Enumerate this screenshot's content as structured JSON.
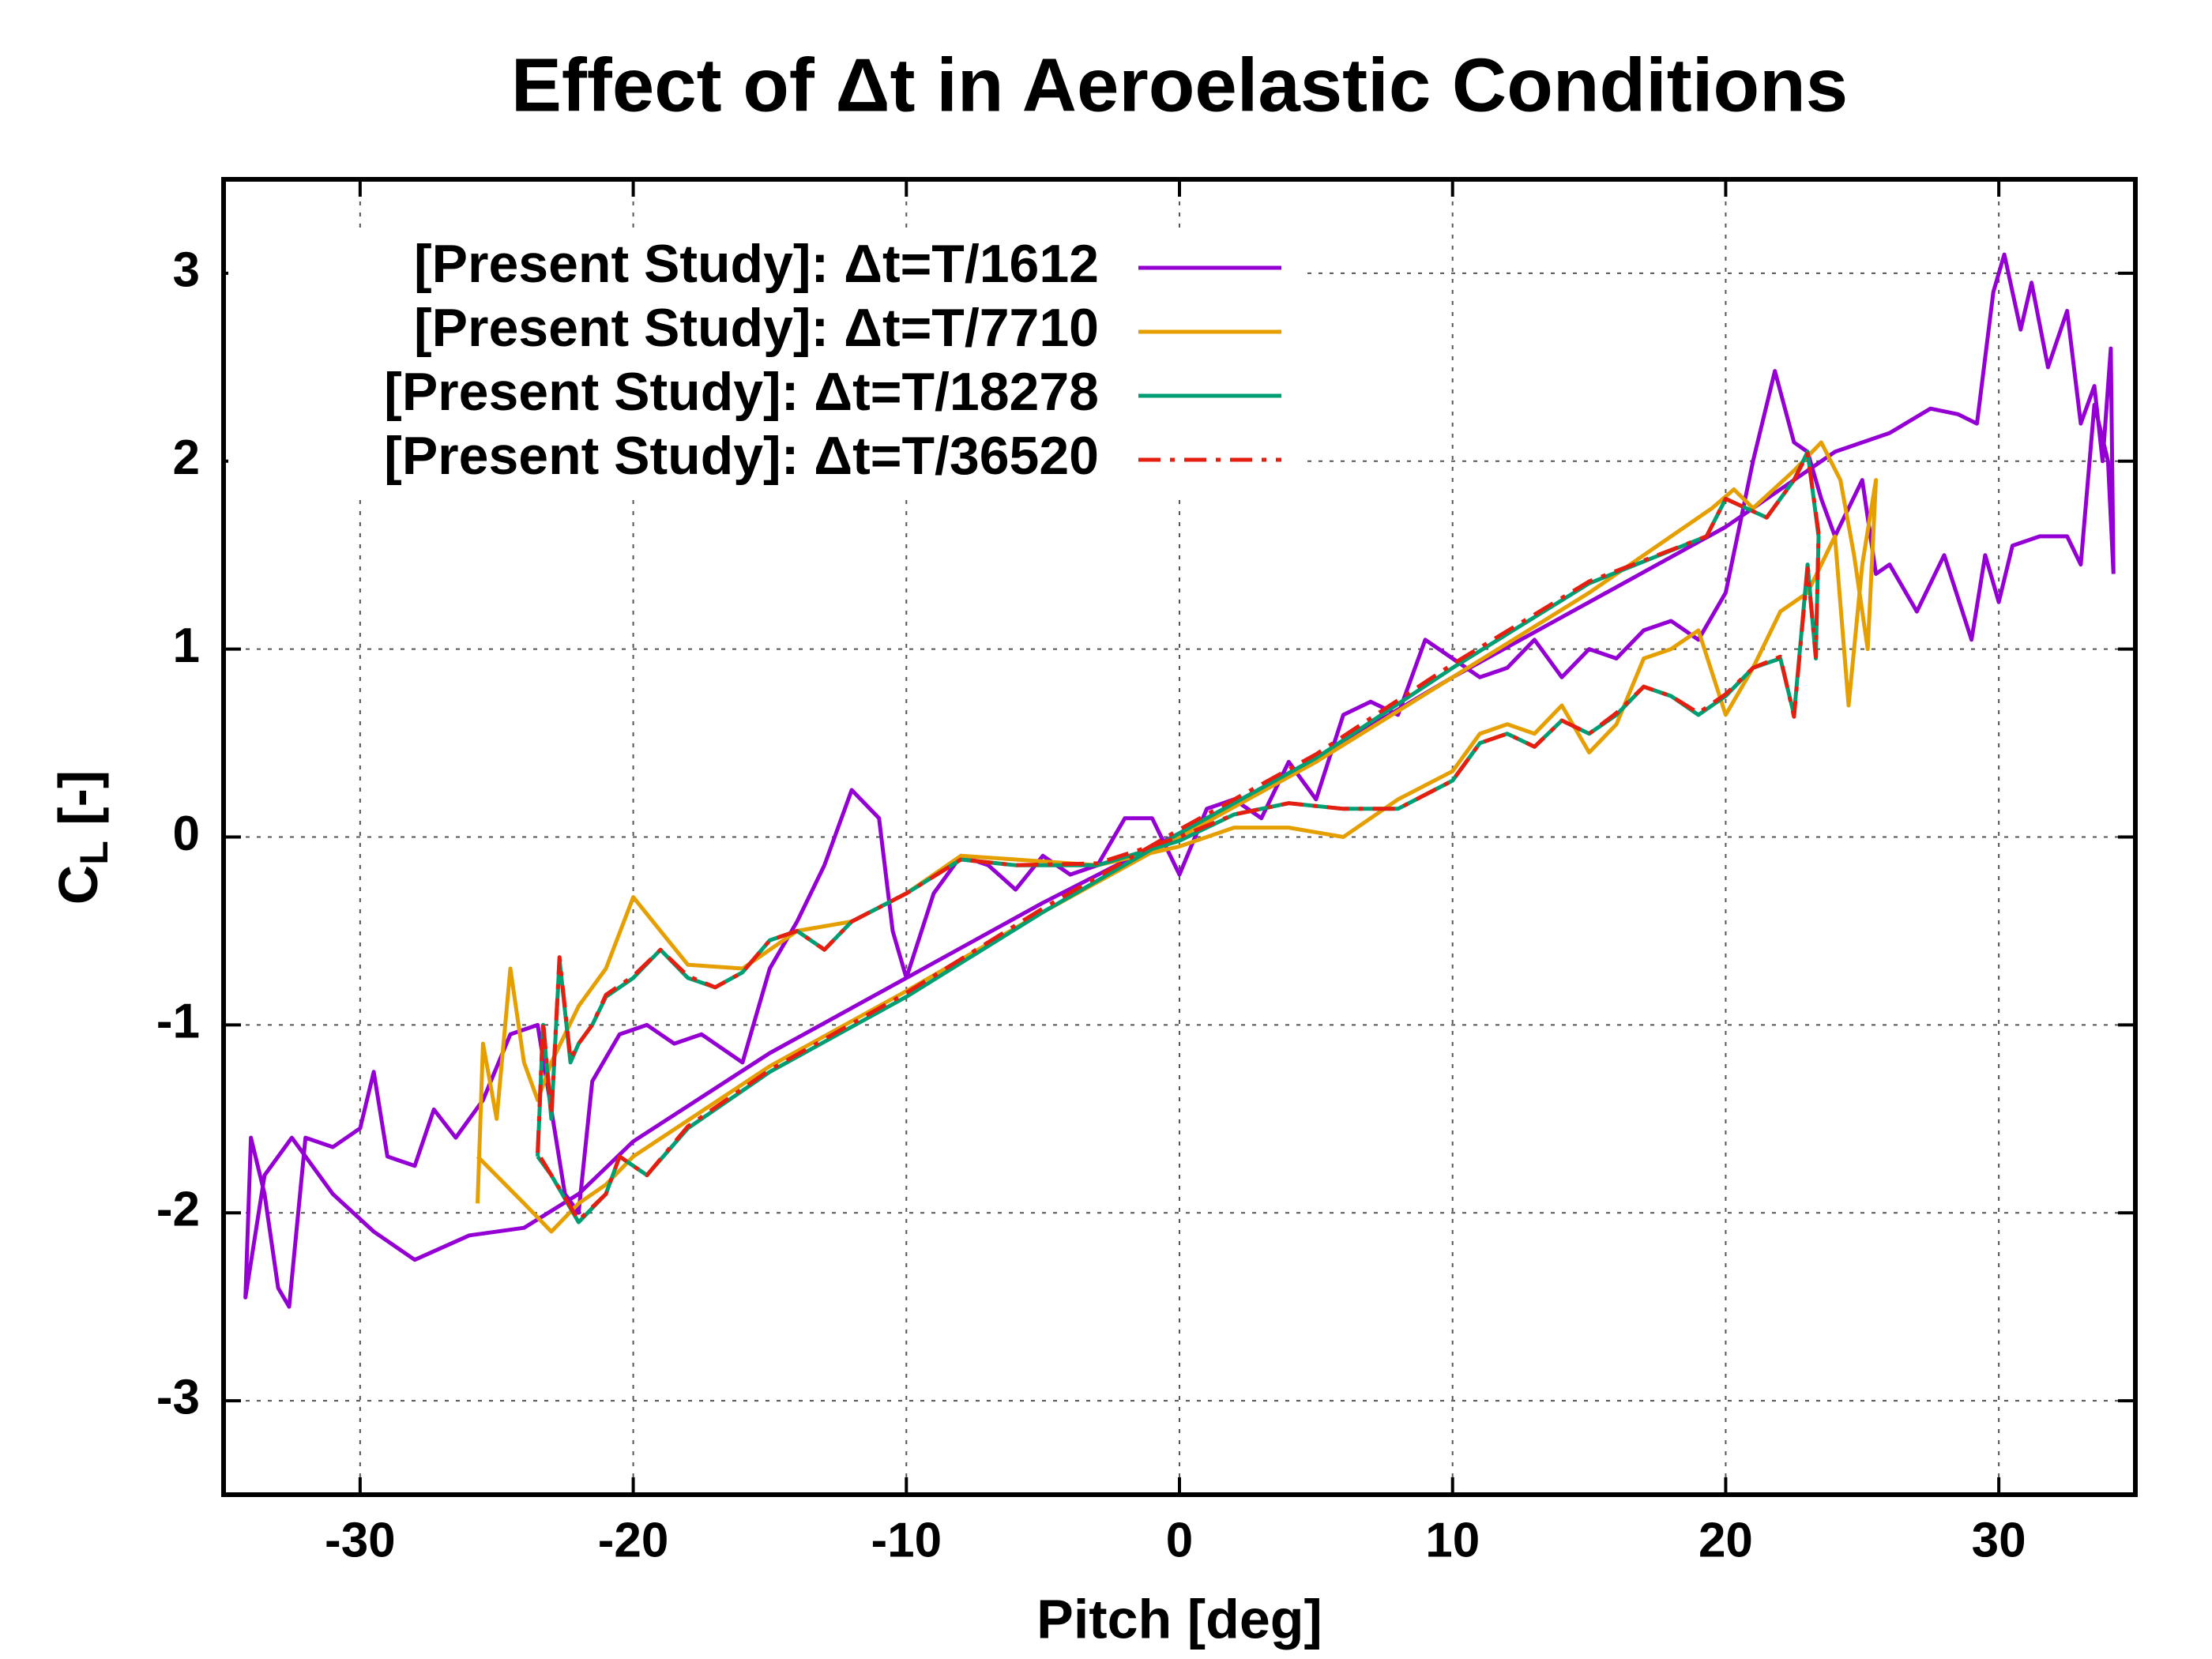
{
  "chart_data": {
    "type": "line",
    "title": "Effect of Δt in Aeroelastic Conditions",
    "xlabel": "Pitch [deg]",
    "ylabel": {
      "symbol": "C",
      "subscript": "L",
      "unit": " [-]"
    },
    "xlim": [
      -35,
      35
    ],
    "ylim": [
      -3.5,
      3.5
    ],
    "xticks": [
      -30,
      -20,
      -10,
      0,
      10,
      20,
      30
    ],
    "yticks": [
      -3,
      -2,
      -1,
      0,
      1,
      2,
      3
    ],
    "grid": true,
    "legend": "upper left",
    "series": [
      {
        "name": "[Present Study]: Δt=T/1612",
        "color": "#9400d3",
        "line_style": "solid",
        "x": [
          34.2,
          34.1,
          33.8,
          33.5,
          33,
          32.5,
          31.8,
          31.2,
          30.8,
          30.2,
          29.8,
          29.2,
          28.5,
          27.5,
          26,
          24,
          22,
          20,
          15,
          10,
          5,
          0,
          -5,
          -10,
          -15,
          -20,
          -22,
          -24,
          -26,
          -28,
          -29.5,
          -31,
          -32.5,
          -33.5,
          -34.2,
          -34,
          -33.5,
          -33,
          -32.6,
          -32,
          -31,
          -30,
          -29.5,
          -29,
          -28,
          -27.3,
          -26.5,
          -25.5,
          -24.5,
          -23.5,
          -22.5,
          -22,
          -21.5,
          -20.5,
          -19.5,
          -18.5,
          -17.5,
          -16.5,
          -16,
          -15,
          -14,
          -13,
          -12,
          -11,
          -10.5,
          -10,
          -9,
          -8,
          -7,
          -6,
          -5,
          -4,
          -3,
          -2,
          -1,
          0,
          1,
          2,
          3,
          4,
          5,
          6,
          7,
          8,
          9,
          10,
          11,
          12,
          13,
          14,
          15,
          16,
          17,
          18,
          19,
          20,
          21,
          21.8,
          22.5,
          23,
          23.5,
          24,
          25,
          25.5,
          26,
          27,
          28,
          29,
          29.5,
          30,
          30.5,
          31.5,
          32.5,
          33,
          33.5,
          34,
          34.2
        ],
        "values": [
          1.4,
          2.6,
          2.0,
          2.4,
          2.2,
          2.8,
          2.5,
          2.95,
          2.7,
          3.1,
          2.9,
          2.2,
          2.25,
          2.28,
          2.15,
          2.05,
          1.85,
          1.65,
          1.25,
          0.85,
          0.42,
          0.02,
          -0.35,
          -0.75,
          -1.15,
          -1.62,
          -1.9,
          -2.08,
          -2.12,
          -2.25,
          -2.1,
          -1.9,
          -1.6,
          -1.8,
          -2.45,
          -1.6,
          -1.9,
          -2.4,
          -2.5,
          -1.6,
          -1.65,
          -1.55,
          -1.25,
          -1.7,
          -1.75,
          -1.45,
          -1.6,
          -1.4,
          -1.05,
          -1.0,
          -1.9,
          -2.0,
          -1.3,
          -1.05,
          -1.0,
          -1.1,
          -1.05,
          -1.15,
          -1.2,
          -0.7,
          -0.45,
          -0.15,
          0.25,
          0.1,
          -0.5,
          -0.75,
          -0.3,
          -0.1,
          -0.15,
          -0.28,
          -0.1,
          -0.2,
          -0.15,
          0.1,
          0.1,
          -0.2,
          0.15,
          0.2,
          0.1,
          0.4,
          0.2,
          0.65,
          0.72,
          0.65,
          1.05,
          0.95,
          0.85,
          0.9,
          1.05,
          0.85,
          1.0,
          0.95,
          1.1,
          1.15,
          1.05,
          1.3,
          2.0,
          2.48,
          2.1,
          2.05,
          1.8,
          1.6,
          1.9,
          1.4,
          1.45,
          1.2,
          1.5,
          1.05,
          1.5,
          1.25,
          1.55,
          1.6,
          1.6,
          1.45,
          2.3,
          2.0,
          1.4
        ]
      },
      {
        "name": "[Present Study]: Δt=T/7710",
        "color": "#e69f00",
        "line_style": "solid",
        "x": [
          -25.7,
          -25.5,
          -25,
          -24.5,
          -24,
          -23.5,
          -23,
          -22,
          -21,
          -20,
          -19,
          -18,
          -16,
          -15,
          -14,
          -12,
          -10,
          -8,
          -6,
          -3,
          0,
          2,
          4,
          6,
          8,
          10,
          11,
          12,
          13,
          14,
          15,
          16,
          17,
          18,
          19,
          20,
          21,
          22,
          23,
          24,
          24.5,
          25,
          25.5,
          25.2,
          24.7,
          24.2,
          23.5,
          22.5,
          21,
          20.3,
          19.5,
          15,
          10,
          5,
          0,
          -5,
          -10,
          -15,
          -20,
          -21,
          -22,
          -23,
          -24,
          -25.7
        ],
        "values": [
          -1.95,
          -1.1,
          -1.5,
          -0.7,
          -1.2,
          -1.4,
          -1.2,
          -0.9,
          -0.7,
          -0.32,
          -0.5,
          -0.68,
          -0.7,
          -0.6,
          -0.5,
          -0.45,
          -0.3,
          -0.1,
          -0.12,
          -0.15,
          -0.05,
          0.05,
          0.05,
          0.0,
          0.2,
          0.35,
          0.55,
          0.6,
          0.55,
          0.7,
          0.45,
          0.6,
          0.95,
          1.0,
          1.1,
          0.65,
          0.9,
          1.2,
          1.3,
          1.6,
          0.7,
          1.45,
          1.9,
          1.0,
          1.5,
          1.9,
          2.1,
          1.95,
          1.75,
          1.85,
          1.75,
          1.3,
          0.85,
          0.4,
          0.0,
          -0.4,
          -0.82,
          -1.22,
          -1.7,
          -1.85,
          -1.95,
          -2.1,
          -1.95,
          -1.7
        ]
      },
      {
        "name": "[Present Study]: Δt=T/18278",
        "color": "#009e73",
        "line_style": "solid",
        "x": [
          -23.5,
          -23.3,
          -23,
          -22.7,
          -22.3,
          -22,
          -21.5,
          -21,
          -20,
          -19,
          -18,
          -17,
          -16,
          -15,
          -14,
          -13,
          -12,
          -10,
          -8,
          -6,
          -3,
          0,
          2,
          4,
          6,
          8,
          10,
          11,
          12,
          13,
          14,
          15,
          16,
          17,
          18,
          19,
          20,
          21,
          22,
          22.5,
          23,
          23.3,
          23.4,
          23,
          22.5,
          21.5,
          20,
          19.3,
          15,
          10,
          5,
          0,
          -5,
          -10,
          -15,
          -18,
          -19.5,
          -20.5,
          -21,
          -22,
          -23,
          -23.5
        ],
        "values": [
          -1.7,
          -1.0,
          -1.5,
          -0.65,
          -1.2,
          -1.1,
          -1.0,
          -0.85,
          -0.75,
          -0.6,
          -0.75,
          -0.8,
          -0.72,
          -0.55,
          -0.5,
          -0.6,
          -0.45,
          -0.3,
          -0.12,
          -0.15,
          -0.15,
          -0.02,
          0.12,
          0.18,
          0.15,
          0.15,
          0.3,
          0.5,
          0.55,
          0.48,
          0.62,
          0.55,
          0.65,
          0.8,
          0.75,
          0.65,
          0.75,
          0.9,
          0.95,
          0.65,
          1.45,
          0.95,
          1.6,
          2.05,
          1.9,
          1.7,
          1.8,
          1.6,
          1.35,
          0.9,
          0.42,
          0.02,
          -0.4,
          -0.85,
          -1.25,
          -1.55,
          -1.8,
          -1.7,
          -1.9,
          -2.05,
          -1.8,
          -1.7
        ]
      },
      {
        "name": "[Present Study]: Δt=T/36520",
        "color": "#e51e10",
        "line_style": "dash-dot",
        "x": [
          -23.5,
          -23.3,
          -23,
          -22.7,
          -22.3,
          -22,
          -21.5,
          -21,
          -20,
          -19,
          -18,
          -17,
          -16,
          -15,
          -14,
          -13,
          -12,
          -10,
          -8,
          -6,
          -3,
          0,
          2,
          4,
          6,
          8,
          10,
          11,
          12,
          13,
          14,
          15,
          16,
          17,
          18,
          19,
          20,
          21,
          22,
          22.5,
          23,
          23.3,
          23.4,
          23,
          22.5,
          21.5,
          20,
          19.3,
          15,
          10,
          5,
          0,
          -5,
          -10,
          -15,
          -18,
          -19.5,
          -20.5,
          -21,
          -22,
          -23,
          -23.5
        ],
        "values": [
          -1.68,
          -0.98,
          -1.48,
          -0.64,
          -1.18,
          -1.1,
          -1.0,
          -0.84,
          -0.74,
          -0.6,
          -0.74,
          -0.8,
          -0.72,
          -0.55,
          -0.5,
          -0.6,
          -0.45,
          -0.3,
          -0.12,
          -0.15,
          -0.14,
          0.0,
          0.12,
          0.18,
          0.15,
          0.15,
          0.3,
          0.5,
          0.55,
          0.48,
          0.62,
          0.55,
          0.66,
          0.8,
          0.75,
          0.66,
          0.76,
          0.9,
          0.96,
          0.64,
          1.43,
          0.96,
          1.62,
          2.04,
          1.9,
          1.7,
          1.8,
          1.6,
          1.36,
          0.92,
          0.44,
          0.04,
          -0.38,
          -0.83,
          -1.24,
          -1.54,
          -1.8,
          -1.7,
          -1.9,
          -2.04,
          -1.8,
          -1.68
        ]
      }
    ]
  }
}
